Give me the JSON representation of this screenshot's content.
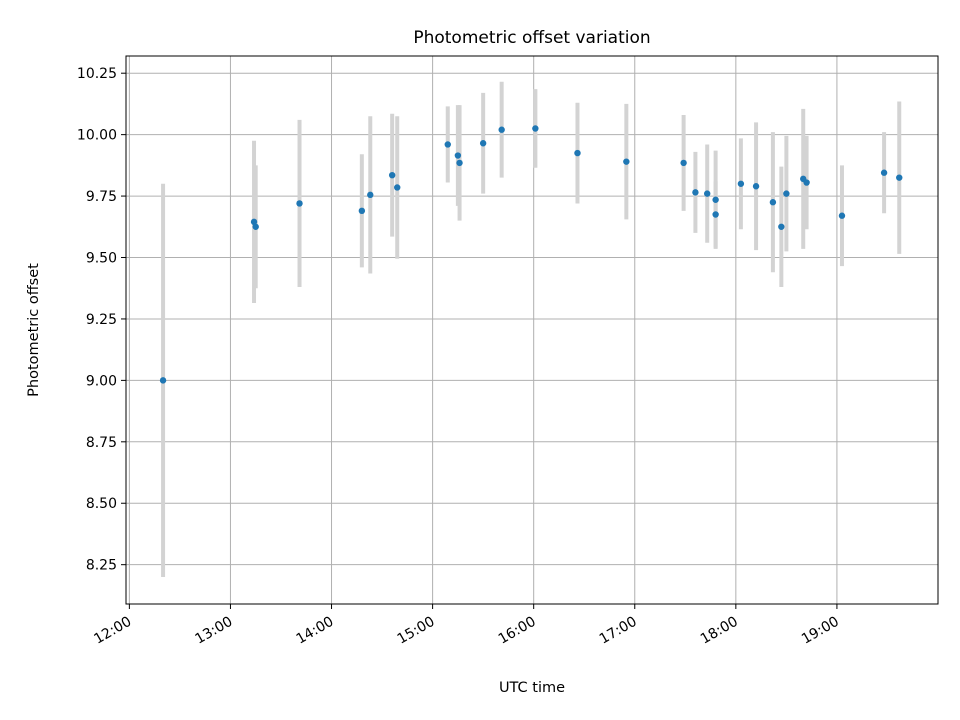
{
  "chart_data": {
    "type": "scatter",
    "title": "Photometric offset variation",
    "xlabel": "UTC time",
    "ylabel": "Photometric offset",
    "x_unit": "hours (UTC)",
    "xlim": [
      "11:58",
      "20:00"
    ],
    "ylim": [
      8.09,
      10.32
    ],
    "x_ticks": [
      "12:00",
      "13:00",
      "14:00",
      "15:00",
      "16:00",
      "17:00",
      "18:00",
      "19:00"
    ],
    "y_ticks": [
      "8.25",
      "8.50",
      "8.75",
      "9.00",
      "9.25",
      "9.50",
      "9.75",
      "10.00",
      "10.25"
    ],
    "grid": true,
    "marker_color": "#1f77b4",
    "errorbar_color": "#d3d3d3",
    "points": [
      {
        "x": "12:20",
        "y": 9.0,
        "err": 0.8
      },
      {
        "x": "13:14",
        "y": 9.645,
        "err": 0.33
      },
      {
        "x": "13:15",
        "y": 9.625,
        "err": 0.25
      },
      {
        "x": "13:41",
        "y": 9.72,
        "err": 0.34
      },
      {
        "x": "14:18",
        "y": 9.69,
        "err": 0.23
      },
      {
        "x": "14:23",
        "y": 9.755,
        "err": 0.32
      },
      {
        "x": "14:36",
        "y": 9.835,
        "err": 0.25
      },
      {
        "x": "14:39",
        "y": 9.785,
        "err": 0.29
      },
      {
        "x": "15:09",
        "y": 9.96,
        "err": 0.155
      },
      {
        "x": "15:15",
        "y": 9.915,
        "err": 0.205
      },
      {
        "x": "15:16",
        "y": 9.885,
        "err": 0.235
      },
      {
        "x": "15:30",
        "y": 9.965,
        "err": 0.205
      },
      {
        "x": "15:41",
        "y": 10.02,
        "err": 0.195
      },
      {
        "x": "16:01",
        "y": 10.025,
        "err": 0.16
      },
      {
        "x": "16:26",
        "y": 9.925,
        "err": 0.205
      },
      {
        "x": "16:55",
        "y": 9.89,
        "err": 0.235
      },
      {
        "x": "17:29",
        "y": 9.885,
        "err": 0.195
      },
      {
        "x": "17:36",
        "y": 9.765,
        "err": 0.165
      },
      {
        "x": "17:43",
        "y": 9.76,
        "err": 0.2
      },
      {
        "x": "17:48",
        "y": 9.735,
        "err": 0.2
      },
      {
        "x": "17:48",
        "y": 9.675,
        "err": 0.135
      },
      {
        "x": "18:03",
        "y": 9.8,
        "err": 0.185
      },
      {
        "x": "18:12",
        "y": 9.79,
        "err": 0.26
      },
      {
        "x": "18:22",
        "y": 9.725,
        "err": 0.285
      },
      {
        "x": "18:27",
        "y": 9.625,
        "err": 0.245
      },
      {
        "x": "18:30",
        "y": 9.76,
        "err": 0.235
      },
      {
        "x": "18:40",
        "y": 9.82,
        "err": 0.285
      },
      {
        "x": "18:42",
        "y": 9.805,
        "err": 0.19
      },
      {
        "x": "19:03",
        "y": 9.67,
        "err": 0.205
      },
      {
        "x": "19:28",
        "y": 9.845,
        "err": 0.165
      },
      {
        "x": "19:37",
        "y": 9.825,
        "err": 0.31
      }
    ]
  }
}
